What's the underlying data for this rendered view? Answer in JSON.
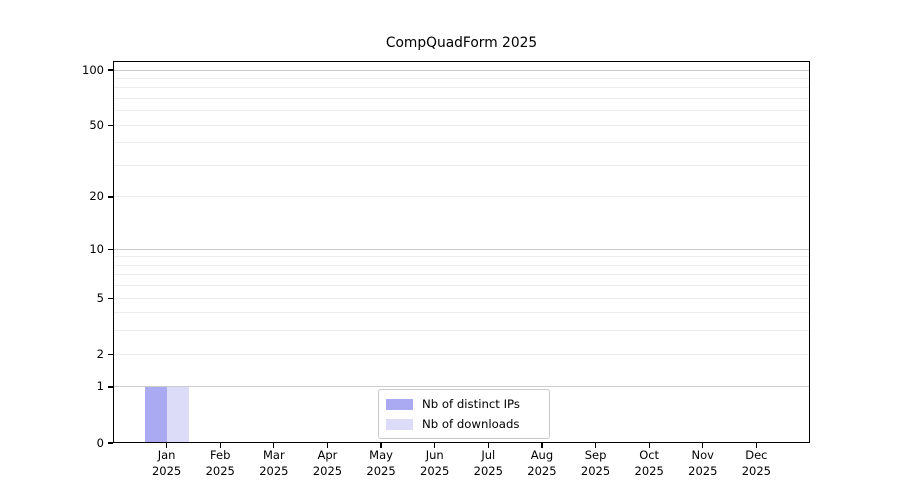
{
  "title": "CompQuadForm 2025",
  "chart_data": {
    "type": "bar",
    "title": "CompQuadForm 2025",
    "categories": [
      "Jan 2025",
      "Feb 2025",
      "Mar 2025",
      "Apr 2025",
      "May 2025",
      "Jun 2025",
      "Jul 2025",
      "Aug 2025",
      "Sep 2025",
      "Oct 2025",
      "Nov 2025",
      "Dec 2025"
    ],
    "series": [
      {
        "name": "Nb of distinct IPs",
        "color": "#aaaaf2",
        "values": [
          1,
          0,
          0,
          0,
          0,
          0,
          0,
          0,
          0,
          0,
          0,
          0
        ]
      },
      {
        "name": "Nb of downloads",
        "color": "#dcdcf8",
        "values": [
          1,
          0,
          0,
          0,
          0,
          0,
          0,
          0,
          0,
          0,
          0,
          0
        ]
      }
    ],
    "xlabel": "",
    "ylabel": "",
    "yscale": "log1p",
    "ylim": [
      0,
      112
    ],
    "y_tick_labels": [
      0,
      1,
      2,
      5,
      10,
      20,
      50,
      100
    ],
    "grid": "on",
    "grid_major_at": [
      1,
      10,
      100
    ],
    "grid_minor_at": [
      2,
      3,
      4,
      5,
      6,
      7,
      8,
      9,
      20,
      30,
      40,
      50,
      60,
      70,
      80,
      90
    ],
    "grid_major_color": "#cbcbcb",
    "grid_minor_color": "#ededed",
    "legend_position": "lower center"
  }
}
